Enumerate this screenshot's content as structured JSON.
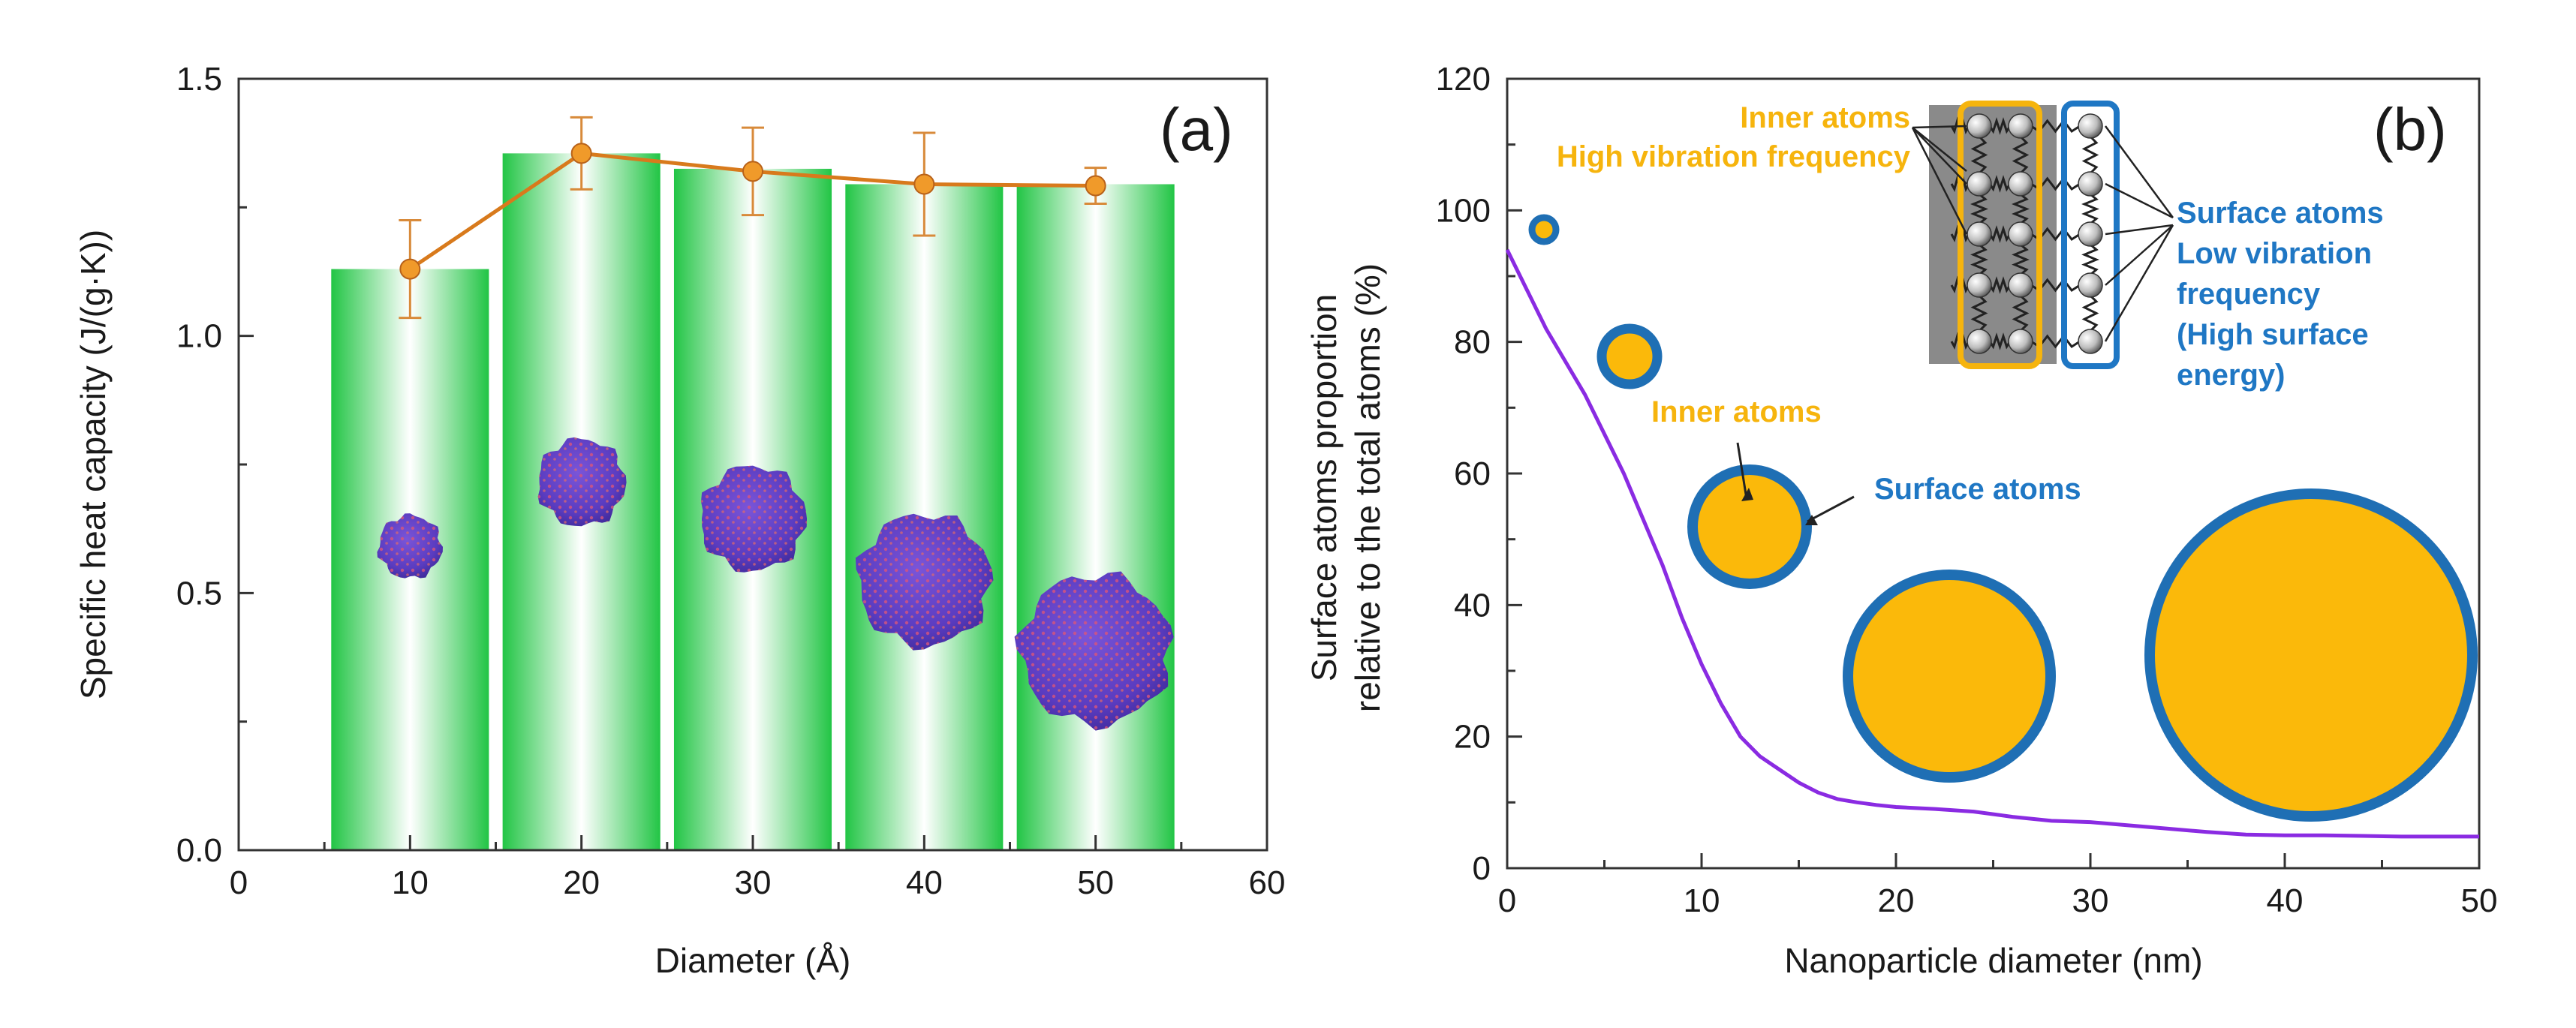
{
  "colors": {
    "bar_green": "#22c545",
    "line_orange": "#d87a1c",
    "marker_orange": "#f09a2a",
    "curve_purple": "#8a2be2",
    "inner_gold": "#fbb90a",
    "surface_blue": "#1f6fb4",
    "label_yellow": "#f6b40d",
    "label_blue": "#1f77c4"
  },
  "chart_data": [
    {
      "panel": "(a)",
      "type": "bar",
      "xlabel": "Diameter (Å)",
      "ylabel": "Specific heat capacity (J/(g·K))",
      "xlim": [
        0,
        60
      ],
      "ylim": [
        0,
        1.5
      ],
      "xticks": [
        "0",
        "10",
        "20",
        "30",
        "40",
        "50",
        "60"
      ],
      "yticks": [
        "0.0",
        "0.5",
        "1.0",
        "1.5"
      ],
      "x": [
        10,
        20,
        30,
        40,
        50
      ],
      "values": [
        1.13,
        1.355,
        1.325,
        1.295,
        1.295
      ],
      "line": {
        "x": [
          10,
          20,
          30,
          40,
          50
        ],
        "y": [
          1.13,
          1.355,
          1.32,
          1.295,
          1.292
        ],
        "error": [
          0.095,
          0.07,
          0.085,
          0.1,
          0.035
        ]
      },
      "nanoparticle_images": [
        "cluster-10",
        "cluster-20",
        "cluster-30",
        "cluster-40",
        "cluster-50"
      ]
    },
    {
      "panel": "(b)",
      "type": "line",
      "xlabel": "Nanoparticle diameter (nm)",
      "ylabel": [
        "Surface atoms proportion",
        "relative to the total atoms  (%)"
      ],
      "xlim": [
        0,
        50
      ],
      "ylim": [
        0,
        120
      ],
      "xticks": [
        "0",
        "10",
        "20",
        "30",
        "40",
        "50"
      ],
      "yticks": [
        "0",
        "20",
        "40",
        "60",
        "80",
        "100",
        "120"
      ],
      "x": [
        0,
        1,
        2,
        3,
        4,
        5,
        6,
        7,
        8,
        9,
        10,
        11,
        12,
        13,
        14,
        15,
        16,
        17,
        18,
        19,
        20,
        22,
        24,
        26,
        28,
        30,
        32,
        34,
        36,
        38,
        40,
        42,
        44,
        46,
        48,
        50
      ],
      "y": [
        94,
        88,
        82,
        77,
        72,
        66,
        60,
        53,
        46,
        38,
        31,
        25,
        20,
        17,
        15,
        13,
        11.5,
        10.5,
        10,
        9.6,
        9.3,
        9,
        8.6,
        7.8,
        7.2,
        7,
        6.5,
        6,
        5.5,
        5.1,
        5,
        5,
        4.9,
        4.8,
        4.8,
        4.8
      ],
      "annotations": {
        "inner_top": "Inner atoms",
        "inner_top2": "High vibration frequency",
        "surface_right": [
          "Surface atoms",
          "Low vibration",
          "frequency",
          "(High surface",
          "energy)"
        ],
        "inner_mid": "Inner atoms",
        "surface_mid": "Surface atoms"
      }
    }
  ]
}
